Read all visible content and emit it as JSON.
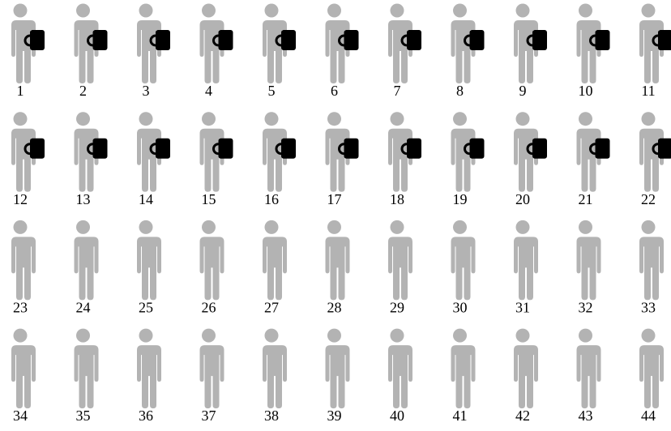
{
  "people": [
    {
      "label": 1,
      "mug": true
    },
    {
      "label": 2,
      "mug": true
    },
    {
      "label": 3,
      "mug": true
    },
    {
      "label": 4,
      "mug": true
    },
    {
      "label": 5,
      "mug": true
    },
    {
      "label": 6,
      "mug": true
    },
    {
      "label": 7,
      "mug": true
    },
    {
      "label": 8,
      "mug": true
    },
    {
      "label": 9,
      "mug": true
    },
    {
      "label": 10,
      "mug": true
    },
    {
      "label": 11,
      "mug": true
    },
    {
      "label": 12,
      "mug": true
    },
    {
      "label": 13,
      "mug": true
    },
    {
      "label": 14,
      "mug": true
    },
    {
      "label": 15,
      "mug": true
    },
    {
      "label": 16,
      "mug": true
    },
    {
      "label": 17,
      "mug": true
    },
    {
      "label": 18,
      "mug": true
    },
    {
      "label": 19,
      "mug": true
    },
    {
      "label": 20,
      "mug": true
    },
    {
      "label": 21,
      "mug": true
    },
    {
      "label": 22,
      "mug": true
    },
    {
      "label": 23,
      "mug": false
    },
    {
      "label": 24,
      "mug": false
    },
    {
      "label": 25,
      "mug": false
    },
    {
      "label": 26,
      "mug": false
    },
    {
      "label": 27,
      "mug": false
    },
    {
      "label": 28,
      "mug": false
    },
    {
      "label": 29,
      "mug": false
    },
    {
      "label": 30,
      "mug": false
    },
    {
      "label": 31,
      "mug": false
    },
    {
      "label": 32,
      "mug": false
    },
    {
      "label": 33,
      "mug": false
    },
    {
      "label": 34,
      "mug": false
    },
    {
      "label": 35,
      "mug": false
    },
    {
      "label": 36,
      "mug": false
    },
    {
      "label": 37,
      "mug": false
    },
    {
      "label": 38,
      "mug": false
    },
    {
      "label": 39,
      "mug": false
    },
    {
      "label": 40,
      "mug": false
    },
    {
      "label": 41,
      "mug": false
    },
    {
      "label": 42,
      "mug": false
    },
    {
      "label": 43,
      "mug": false
    },
    {
      "label": 44,
      "mug": false
    }
  ]
}
